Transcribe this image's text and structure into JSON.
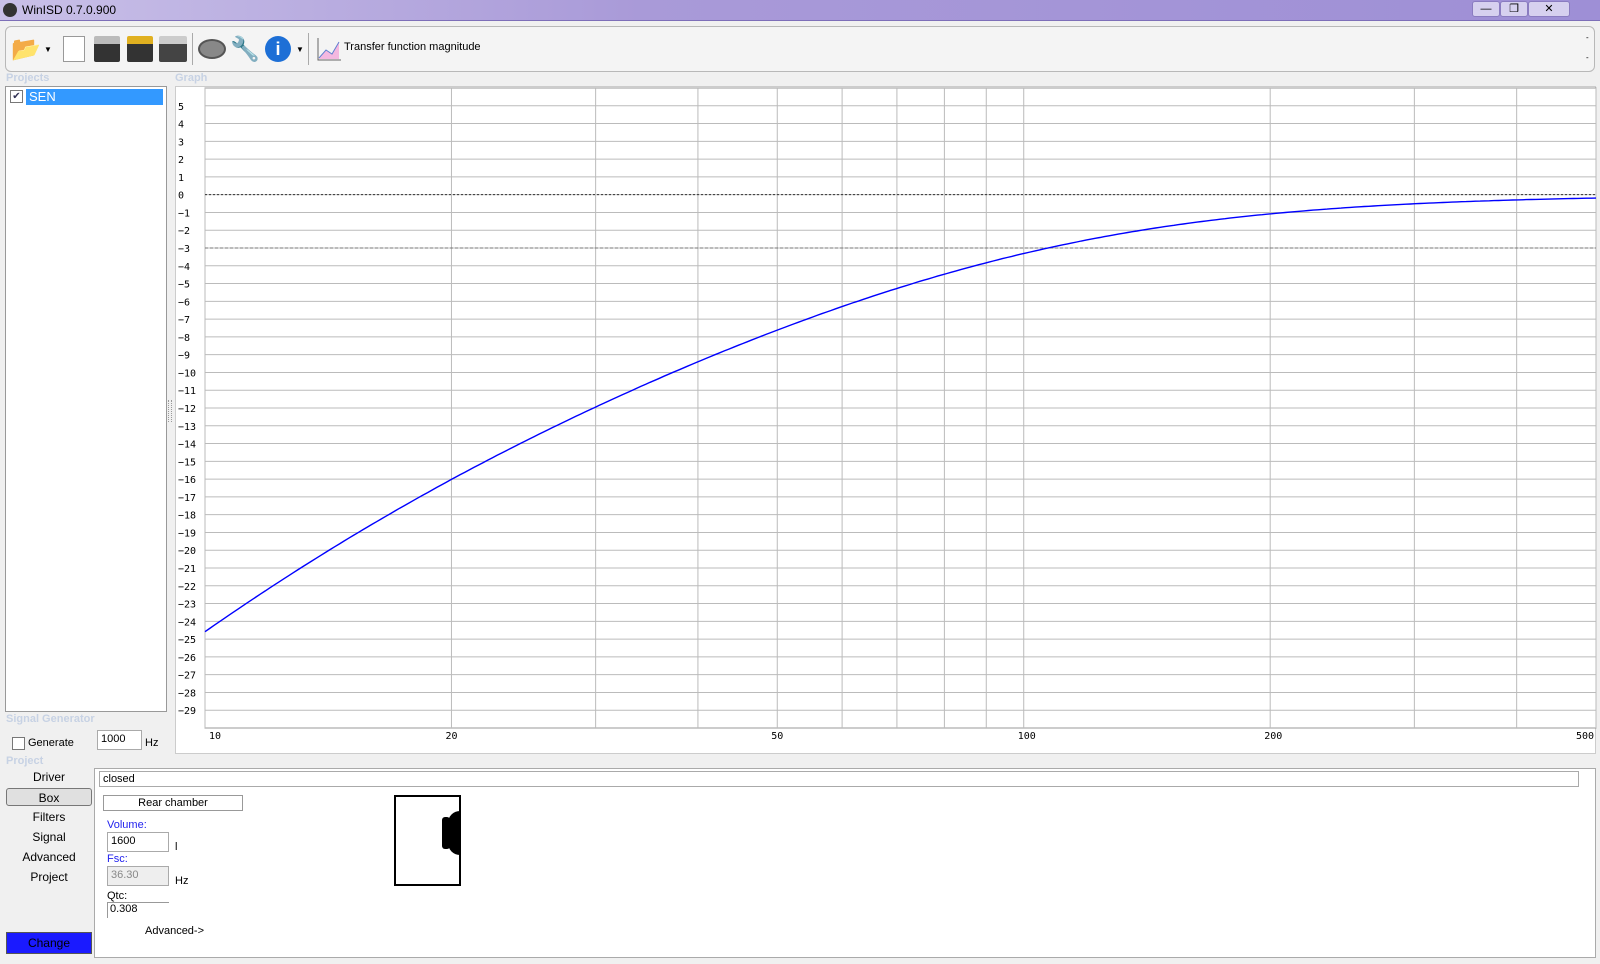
{
  "window": {
    "title": "WinISD 0.7.0.900",
    "min": "—",
    "restore": "❐",
    "close": "✕"
  },
  "toolbar": {
    "graph_type": "Transfer function magnitude",
    "icons": [
      "open-folder-icon",
      "new-project-icon",
      "save-icon",
      "save-as-icon",
      "save-all-icon",
      "driver-icon",
      "tools-icon",
      "info-icon",
      "graph-icon"
    ]
  },
  "projects": {
    "label": "Projects",
    "items": [
      {
        "name": "SEN",
        "checked": true
      }
    ]
  },
  "graph": {
    "label": "Graph"
  },
  "signal_generator": {
    "label": "Signal Generator",
    "generate_label": "Generate",
    "frequency": "1000",
    "unit": "Hz"
  },
  "project": {
    "label": "Project",
    "nav": [
      "Driver",
      "Box",
      "Filters",
      "Signal",
      "Advanced",
      "Project"
    ],
    "selected": "Box",
    "change_label": "Change",
    "box_type": "closed",
    "rear_chamber": "Rear chamber",
    "volume_label": "Volume:",
    "volume": "1600",
    "volume_unit": "l",
    "fsc_label": "Fsc:",
    "fsc": "36.30",
    "fsc_unit": "Hz",
    "qtc_label": "Qtc:",
    "qtc": "0.308",
    "advanced_link": "Advanced->"
  },
  "chart_data": {
    "type": "line",
    "title": "",
    "xlabel": "",
    "ylabel": "",
    "x_scale": "log",
    "xlim": [
      10,
      500
    ],
    "ylim": [
      -30,
      6
    ],
    "grid": true,
    "x_ticks": [
      10,
      20,
      50,
      100,
      200,
      500
    ],
    "x_tick_labels": [
      "10",
      "20",
      "50",
      "100",
      "200",
      "500"
    ],
    "x_minor_grid": [
      30,
      40,
      60,
      70,
      80,
      90,
      300,
      400
    ],
    "y_ticks": [
      5,
      4,
      3,
      2,
      1,
      0,
      -1,
      -2,
      -3,
      -4,
      -5,
      -6,
      -7,
      -8,
      -9,
      -10,
      -11,
      -12,
      -13,
      -14,
      -15,
      -16,
      -17,
      -18,
      -19,
      -20,
      -21,
      -22,
      -23,
      -24,
      -25,
      -26,
      -27,
      -28,
      -29
    ],
    "reference_lines": [
      {
        "y": 0,
        "style": "dotted"
      },
      {
        "y": -3,
        "style": "dashed"
      }
    ],
    "series": [
      {
        "color": "#0000ff",
        "x": [
          10,
          12.5,
          15,
          20,
          30,
          40,
          50,
          70,
          100,
          150,
          200,
          300,
          500
        ],
        "y": [
          -24.6,
          -21.6,
          -19.3,
          -16.0,
          -11.9,
          -9.4,
          -7.6,
          -5.3,
          -3.3,
          -1.8,
          -1.1,
          -0.5,
          -0.2
        ]
      }
    ]
  }
}
